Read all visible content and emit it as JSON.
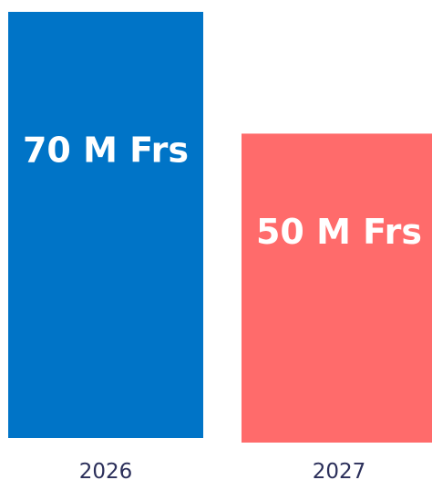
{
  "chart_data": {
    "type": "bar",
    "categories": [
      "2026",
      "2027"
    ],
    "values": [
      70,
      50
    ],
    "unit": "M Frs",
    "data_labels": [
      "70 M Frs",
      "50 M Frs"
    ],
    "colors": [
      "#0074c7",
      "#ff6b6b"
    ],
    "title": "",
    "xlabel": "",
    "ylabel": "",
    "ylim": [
      0,
      70
    ],
    "grid": false,
    "legend": "none"
  }
}
